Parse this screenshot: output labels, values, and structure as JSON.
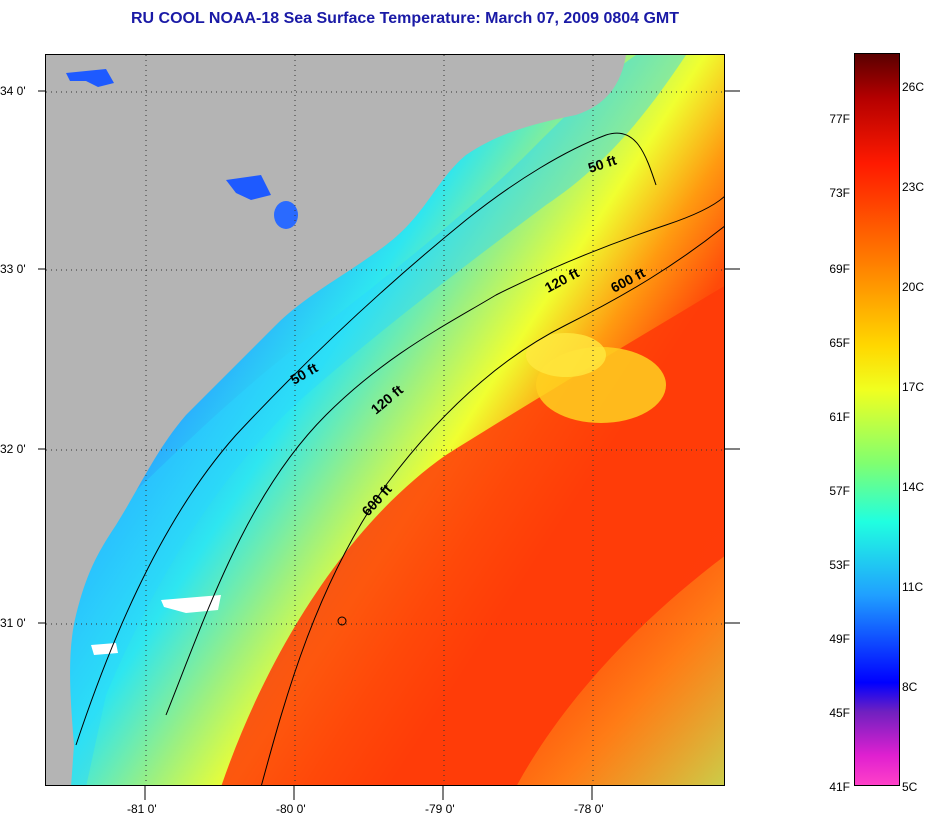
{
  "title": "RU COOL  NOAA-18  Sea Surface Temperature:  March 07, 2009 0804 GMT",
  "colors": {
    "land": "#b4b4b4",
    "title": "#1a1aa6",
    "cold": "#1e5aff",
    "cool": "#2ad6ff",
    "mild": "#f0ff30",
    "warm": "#ff4a0a",
    "cloud": "#ffffff"
  },
  "latitude_labels": [
    "34 0'",
    "33 0'",
    "32 0'",
    "31 0'"
  ],
  "longitude_labels": [
    "-81 0'",
    "-80 0'",
    "-79 0'",
    "-78 0'"
  ],
  "contour_labels": {
    "c50_north": "50 ft",
    "c50_south": "50 ft",
    "c120_north": "120 ft",
    "c120_south": "120 ft",
    "c600_north": "600 ft",
    "c600_south": "600 ft"
  },
  "colorbar": {
    "fahrenheit": [
      "77F",
      "73F",
      "69F",
      "65F",
      "61F",
      "57F",
      "53F",
      "49F",
      "45F",
      "41F"
    ],
    "celsius": [
      "26C",
      "23C",
      "20C",
      "17C",
      "14C",
      "11C",
      "8C",
      "5C"
    ]
  }
}
